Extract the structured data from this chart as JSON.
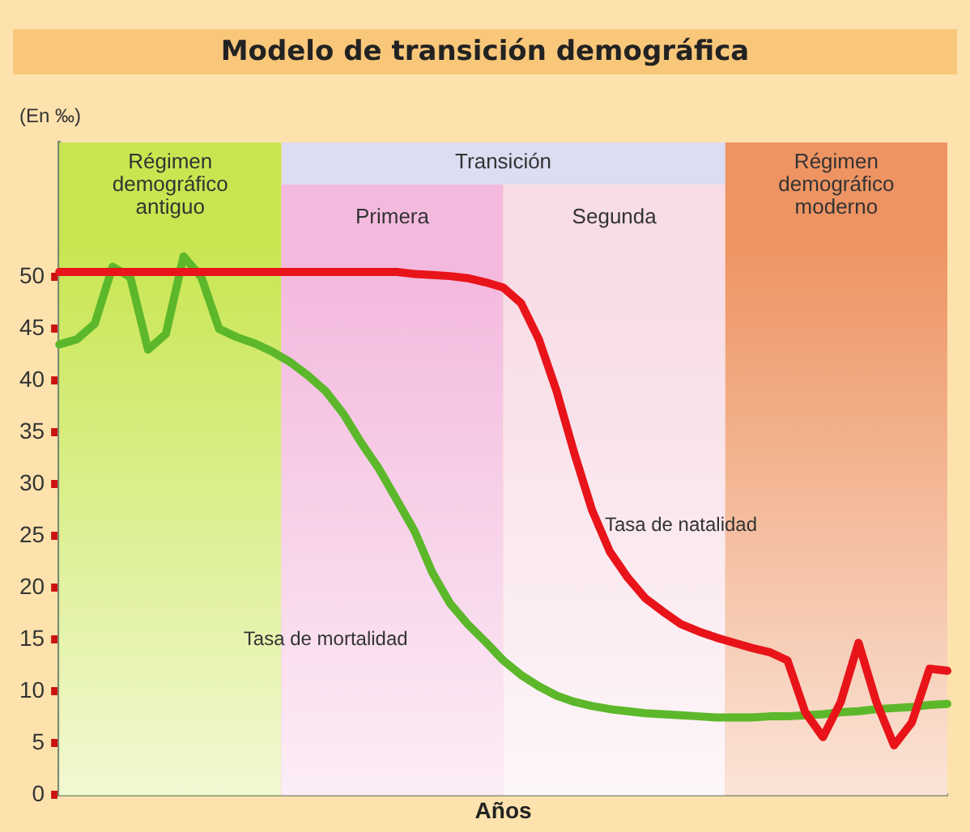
{
  "chart_data": {
    "type": "line",
    "title": "Modelo de transición demográfica",
    "ylabel": "(En ‰)",
    "xlabel": "Años",
    "categories": [
      null,
      null,
      null,
      null,
      null,
      null,
      null,
      null,
      null,
      null,
      null,
      null,
      null,
      null,
      null,
      null,
      null,
      null,
      null,
      null,
      null,
      null,
      null,
      null,
      null,
      null,
      null,
      null,
      null,
      null,
      null,
      null,
      null,
      null,
      null,
      null,
      null,
      null,
      null,
      null,
      null,
      null,
      null,
      null,
      null,
      null,
      null,
      null,
      null,
      null,
      null
    ],
    "ylim": [
      0,
      63
    ],
    "yticks": [
      0,
      5,
      10,
      15,
      20,
      25,
      30,
      35,
      40,
      45,
      50
    ],
    "tick_labels": "y",
    "grid": false,
    "legend": false,
    "marker": "none",
    "line_style": "solid",
    "annotations": [
      "Régimen demográfico antiguo",
      "Transición",
      "Primera",
      "Segunda",
      "Régimen demográfico moderno"
    ],
    "series": [
      {
        "name": "Tasa de natalidad",
        "color": "#e8141a",
        "values": [
          50.5,
          50.5,
          50.5,
          50.5,
          50.5,
          50.5,
          50.5,
          50.5,
          50.5,
          50.5,
          50.5,
          50.5,
          50.5,
          50.5,
          50.5,
          50.5,
          50.5,
          50.5,
          50.5,
          50.5,
          50.3,
          50.2,
          50.1,
          49.9,
          49.5,
          49,
          47.5,
          44,
          39,
          33,
          27.5,
          23.5,
          21,
          19,
          17.7,
          16.5,
          15.8,
          15.2,
          14.7,
          14.2,
          13.8,
          13,
          8,
          5.6,
          9,
          14.7,
          9,
          4.8,
          7,
          12.2,
          12
        ]
      },
      {
        "name": "Tasa de mortalidad",
        "color": "#5cb82a",
        "values": [
          43.5,
          44,
          45.5,
          51,
          50,
          43,
          44.5,
          52,
          50,
          45,
          44.2,
          43.6,
          42.8,
          41.8,
          40.5,
          39,
          36.8,
          34,
          31.5,
          28.5,
          25.5,
          21.5,
          18.5,
          16.5,
          14.8,
          13,
          11.6,
          10.5,
          9.6,
          9,
          8.6,
          8.3,
          8.1,
          7.9,
          7.8,
          7.7,
          7.6,
          7.5,
          7.5,
          7.5,
          7.6,
          7.6,
          7.7,
          7.8,
          8,
          8.1,
          8.3,
          8.4,
          8.5,
          8.7,
          8.8
        ]
      }
    ]
  }
}
